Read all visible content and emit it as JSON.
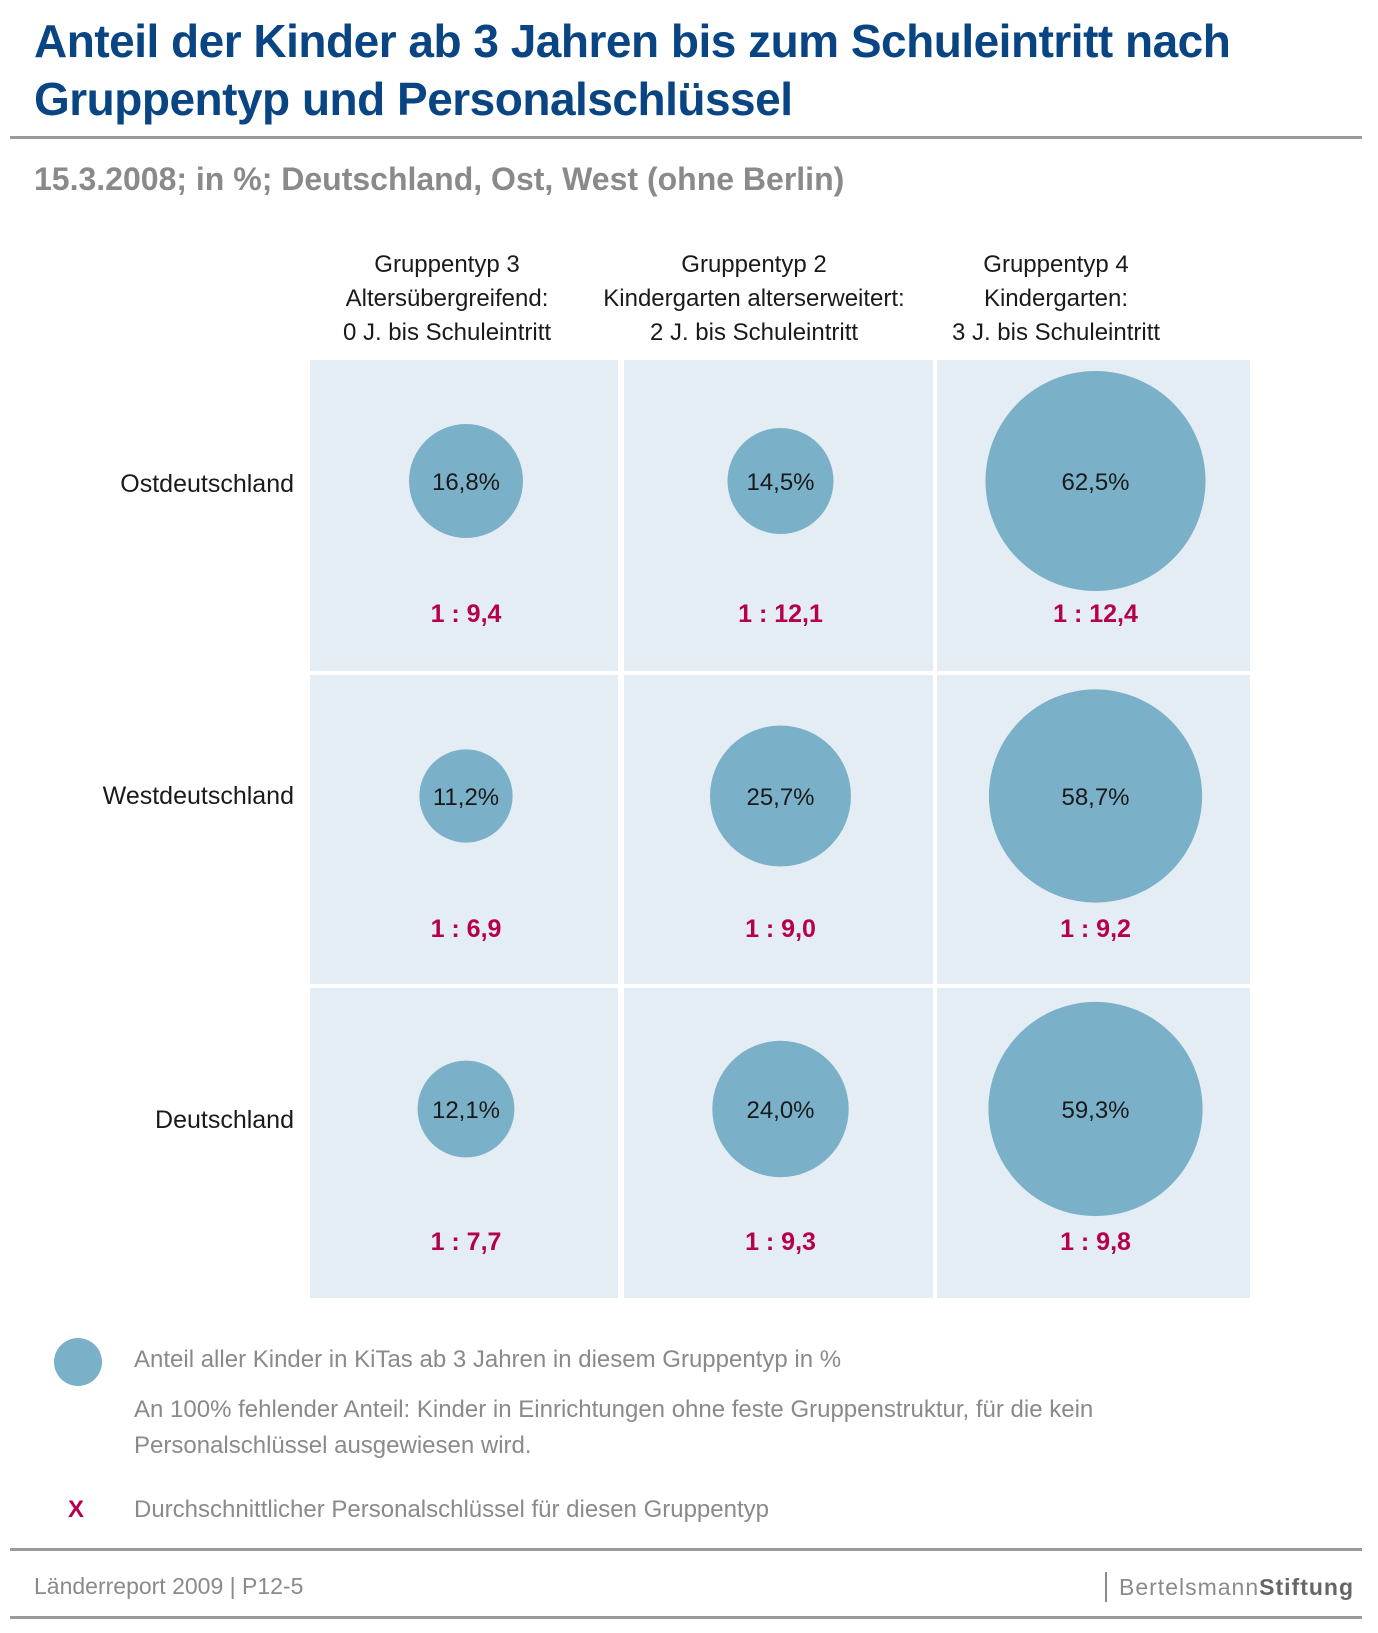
{
  "title": "Anteil der Kinder ab 3 Jahren bis zum Schuleintritt nach Gruppentyp und Personalschlüssel",
  "subtitle": "15.3.2008; in %; Deutschland, Ost, West (ohne Berlin)",
  "colors": {
    "title": "#0a4583",
    "cell_background": "#e4edf4",
    "bubble": "#7bb0c9",
    "ratio": "#b5004b",
    "muted_text": "#8a8a8a"
  },
  "chart_data": {
    "type": "bubble-matrix",
    "columns": [
      {
        "line1": "Gruppentyp 3",
        "line2": "Altersübergreifend:",
        "line3": "0 J. bis Schuleintritt"
      },
      {
        "line1": "Gruppentyp 2",
        "line2": "Kindergarten alterserweitert:",
        "line3": "2 J. bis Schuleintritt"
      },
      {
        "line1": "Gruppentyp 4",
        "line2": "Kindergarten:",
        "line3": "3 J. bis Schuleintritt"
      }
    ],
    "rows": [
      "Ostdeutschland",
      "Westdeutschland",
      "Deutschland"
    ],
    "values": [
      [
        16.8,
        14.5,
        62.5
      ],
      [
        11.2,
        25.7,
        58.7
      ],
      [
        12.1,
        24.0,
        59.3
      ]
    ],
    "value_labels": [
      [
        "16,8%",
        "14,5%",
        "62,5%"
      ],
      [
        "11,2%",
        "25,7%",
        "58,7%"
      ],
      [
        "12,1%",
        "24,0%",
        "59,3%"
      ]
    ],
    "ratio_labels": [
      [
        "1 : 9,4",
        "1 : 12,1",
        "1 : 12,4"
      ],
      [
        "1 : 6,9",
        "1 : 9,0",
        "1 : 9,2"
      ],
      [
        "1 : 7,7",
        "1 : 9,3",
        "1 : 9,8"
      ]
    ]
  },
  "legend": {
    "bubble_text": "Anteil aller Kinder in KiTas ab 3 Jahren in diesem Gruppentyp in %",
    "note_line1": "An 100% fehlender Anteil: Kinder in Einrichtungen ohne feste Gruppenstruktur, für die kein",
    "note_line2": "Personalschlüssel ausgewiesen wird.",
    "ratio_symbol": "X",
    "ratio_text": "Durchschnittlicher Personalschlüssel für diesen Gruppentyp"
  },
  "footer": {
    "source": "Länderreport 2009 | P12-5",
    "brand_light": "Bertelsmann",
    "brand_bold": "Stiftung"
  }
}
